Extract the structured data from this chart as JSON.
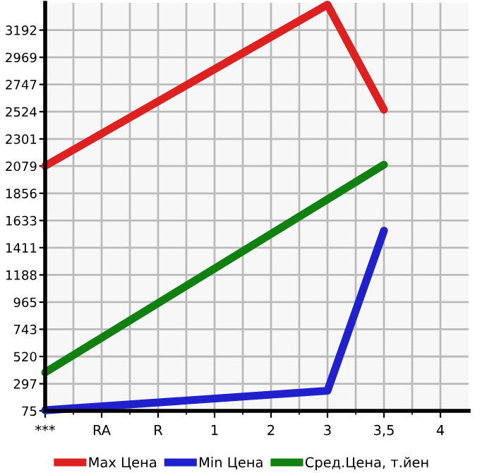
{
  "chart_data": {
    "type": "line",
    "categories": [
      "***",
      "RA",
      "R",
      "1",
      "2",
      "3",
      "3,5",
      "4"
    ],
    "series": [
      {
        "name": "Max Цена",
        "color": "#dd2020",
        "values": [
          2080,
          null,
          null,
          null,
          null,
          3400,
          2540,
          null
        ]
      },
      {
        "name": "Min Цена",
        "color": "#2020cc",
        "values": [
          80,
          null,
          null,
          null,
          null,
          240,
          1550,
          null
        ]
      },
      {
        "name": "Сред.Цена, т.йен",
        "color": "#108010",
        "values": [
          390,
          null,
          null,
          null,
          null,
          null,
          2090,
          null
        ]
      }
    ],
    "ylim": [
      75,
      3415
    ],
    "yticks": [
      75,
      297,
      520,
      743,
      965,
      1188,
      1411,
      1633,
      1856,
      2079,
      2301,
      2524,
      2747,
      2969,
      3192
    ],
    "grid": true,
    "legend": "bottom",
    "marker": "none",
    "line_style": "solid"
  }
}
